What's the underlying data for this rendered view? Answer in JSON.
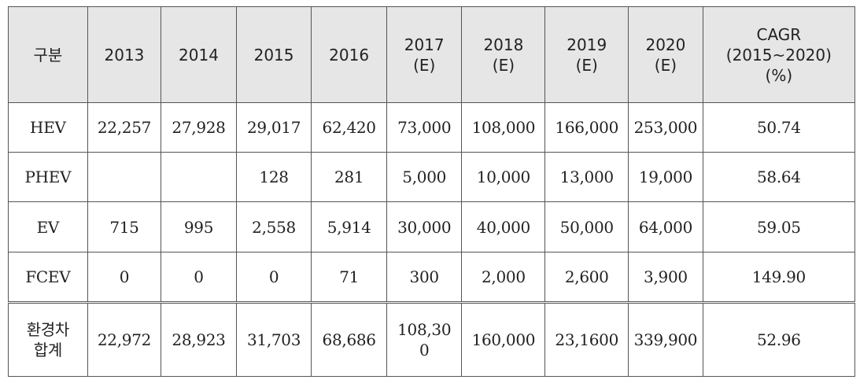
{
  "table": {
    "headers": [
      "구분",
      "2013",
      "2014",
      "2015",
      "2016",
      "2017\n(E)",
      "2018\n(E)",
      "2019\n(E)",
      "2020\n(E)",
      "CAGR\n(2015~2020)\n(%)"
    ],
    "rows": [
      {
        "label": "HEV",
        "cells": [
          "22,257",
          "27,928",
          "29,017",
          "62,420",
          "73,000",
          "108,000",
          "166,000",
          "253,000",
          "50.74"
        ]
      },
      {
        "label": "PHEV",
        "cells": [
          "",
          "",
          "128",
          "281",
          "5,000",
          "10,000",
          "13,000",
          "19,000",
          "58.64"
        ]
      },
      {
        "label": "EV",
        "cells": [
          "715",
          "995",
          "2,558",
          "5,914",
          "30,000",
          "40,000",
          "50,000",
          "64,000",
          "59.05"
        ]
      },
      {
        "label": "FCEV",
        "cells": [
          "0",
          "0",
          "0",
          "71",
          "300",
          "2,000",
          "2,600",
          "3,900",
          "149.90"
        ]
      },
      {
        "label": "환경차\n합계",
        "cells": [
          "22,972",
          "28,923",
          "31,703",
          "68,686",
          "108,30\n0",
          "160,000",
          "23,1600",
          "339,900",
          "52.96"
        ]
      }
    ]
  }
}
